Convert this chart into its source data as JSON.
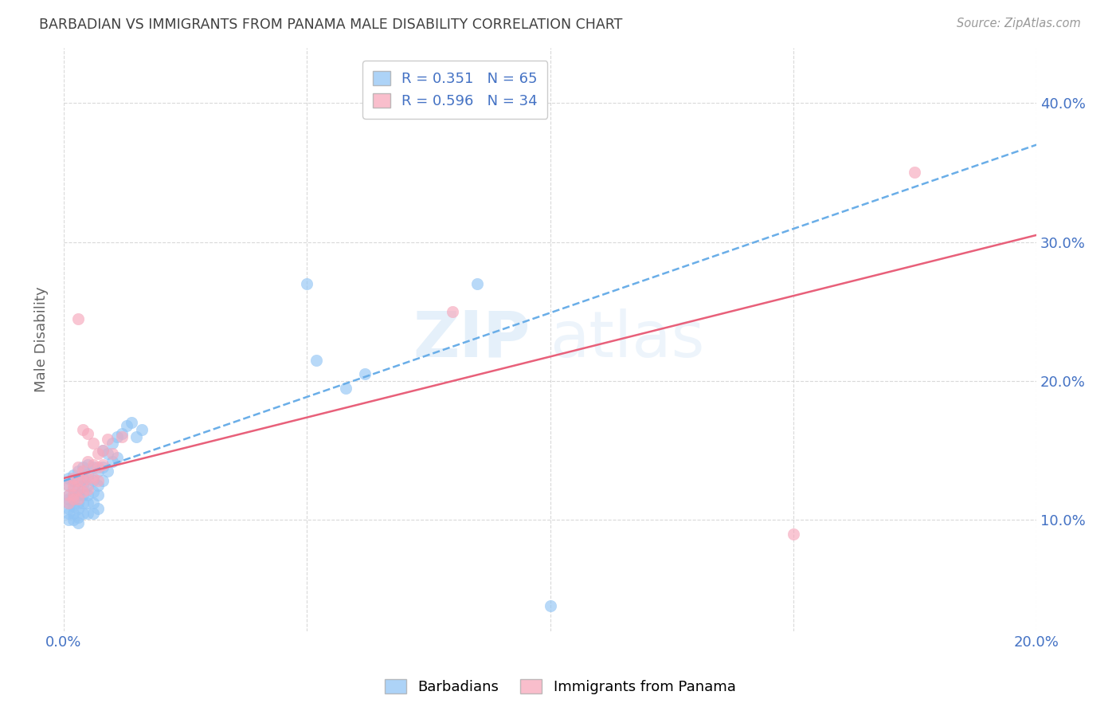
{
  "title": "BARBADIAN VS IMMIGRANTS FROM PANAMA MALE DISABILITY CORRELATION CHART",
  "source": "Source: ZipAtlas.com",
  "ylabel": "Male Disability",
  "xmin": 0.0,
  "xmax": 0.2,
  "ymin": 0.02,
  "ymax": 0.44,
  "legend_upper": [
    {
      "label": "R = 0.351   N = 65",
      "color": "#92c5f5"
    },
    {
      "label": "R = 0.596   N = 34",
      "color": "#f7a8bc"
    }
  ],
  "legend_labels": [
    "Barbadians",
    "Immigrants from Panama"
  ],
  "barbadian_points": [
    [
      0.001,
      0.13
    ],
    [
      0.001,
      0.125
    ],
    [
      0.001,
      0.118
    ],
    [
      0.001,
      0.115
    ],
    [
      0.001,
      0.112
    ],
    [
      0.001,
      0.108
    ],
    [
      0.001,
      0.105
    ],
    [
      0.001,
      0.1
    ],
    [
      0.002,
      0.132
    ],
    [
      0.002,
      0.128
    ],
    [
      0.002,
      0.122
    ],
    [
      0.002,
      0.118
    ],
    [
      0.002,
      0.115
    ],
    [
      0.002,
      0.11
    ],
    [
      0.002,
      0.105
    ],
    [
      0.002,
      0.1
    ],
    [
      0.003,
      0.135
    ],
    [
      0.003,
      0.128
    ],
    [
      0.003,
      0.122
    ],
    [
      0.003,
      0.118
    ],
    [
      0.003,
      0.112
    ],
    [
      0.003,
      0.108
    ],
    [
      0.003,
      0.102
    ],
    [
      0.003,
      0.098
    ],
    [
      0.004,
      0.138
    ],
    [
      0.004,
      0.13
    ],
    [
      0.004,
      0.125
    ],
    [
      0.004,
      0.118
    ],
    [
      0.004,
      0.112
    ],
    [
      0.004,
      0.105
    ],
    [
      0.005,
      0.14
    ],
    [
      0.005,
      0.132
    ],
    [
      0.005,
      0.125
    ],
    [
      0.005,
      0.118
    ],
    [
      0.005,
      0.112
    ],
    [
      0.005,
      0.105
    ],
    [
      0.006,
      0.138
    ],
    [
      0.006,
      0.128
    ],
    [
      0.006,
      0.12
    ],
    [
      0.006,
      0.112
    ],
    [
      0.006,
      0.105
    ],
    [
      0.007,
      0.135
    ],
    [
      0.007,
      0.125
    ],
    [
      0.007,
      0.118
    ],
    [
      0.007,
      0.108
    ],
    [
      0.008,
      0.15
    ],
    [
      0.008,
      0.138
    ],
    [
      0.008,
      0.128
    ],
    [
      0.009,
      0.148
    ],
    [
      0.009,
      0.135
    ],
    [
      0.01,
      0.155
    ],
    [
      0.01,
      0.142
    ],
    [
      0.011,
      0.16
    ],
    [
      0.011,
      0.145
    ],
    [
      0.012,
      0.162
    ],
    [
      0.013,
      0.168
    ],
    [
      0.014,
      0.17
    ],
    [
      0.015,
      0.16
    ],
    [
      0.016,
      0.165
    ],
    [
      0.05,
      0.27
    ],
    [
      0.052,
      0.215
    ],
    [
      0.058,
      0.195
    ],
    [
      0.062,
      0.205
    ],
    [
      0.085,
      0.27
    ],
    [
      0.1,
      0.038
    ]
  ],
  "panama_points": [
    [
      0.001,
      0.125
    ],
    [
      0.001,
      0.118
    ],
    [
      0.001,
      0.112
    ],
    [
      0.002,
      0.13
    ],
    [
      0.002,
      0.125
    ],
    [
      0.002,
      0.118
    ],
    [
      0.002,
      0.115
    ],
    [
      0.003,
      0.245
    ],
    [
      0.003,
      0.138
    ],
    [
      0.003,
      0.128
    ],
    [
      0.003,
      0.122
    ],
    [
      0.003,
      0.115
    ],
    [
      0.004,
      0.165
    ],
    [
      0.004,
      0.135
    ],
    [
      0.004,
      0.128
    ],
    [
      0.004,
      0.12
    ],
    [
      0.005,
      0.162
    ],
    [
      0.005,
      0.142
    ],
    [
      0.005,
      0.13
    ],
    [
      0.005,
      0.122
    ],
    [
      0.006,
      0.155
    ],
    [
      0.006,
      0.14
    ],
    [
      0.006,
      0.13
    ],
    [
      0.007,
      0.148
    ],
    [
      0.007,
      0.138
    ],
    [
      0.007,
      0.128
    ],
    [
      0.008,
      0.15
    ],
    [
      0.008,
      0.14
    ],
    [
      0.009,
      0.158
    ],
    [
      0.01,
      0.148
    ],
    [
      0.012,
      0.16
    ],
    [
      0.08,
      0.25
    ],
    [
      0.15,
      0.09
    ],
    [
      0.175,
      0.35
    ]
  ],
  "barbadian_line": {
    "x": [
      0.0,
      0.2
    ],
    "y": [
      0.128,
      0.37
    ]
  },
  "panama_line": {
    "x": [
      0.0,
      0.2
    ],
    "y": [
      0.13,
      0.305
    ]
  },
  "bg_color": "#ffffff",
  "scatter_blue": "#92c5f5",
  "scatter_pink": "#f7a8bc",
  "line_blue": "#6aaee8",
  "line_pink": "#e8607a",
  "grid_color": "#d0d0d0",
  "tick_color": "#4472c4",
  "title_color": "#404040",
  "ylabel_color": "#666666",
  "watermark_color": "#d0e4f7"
}
